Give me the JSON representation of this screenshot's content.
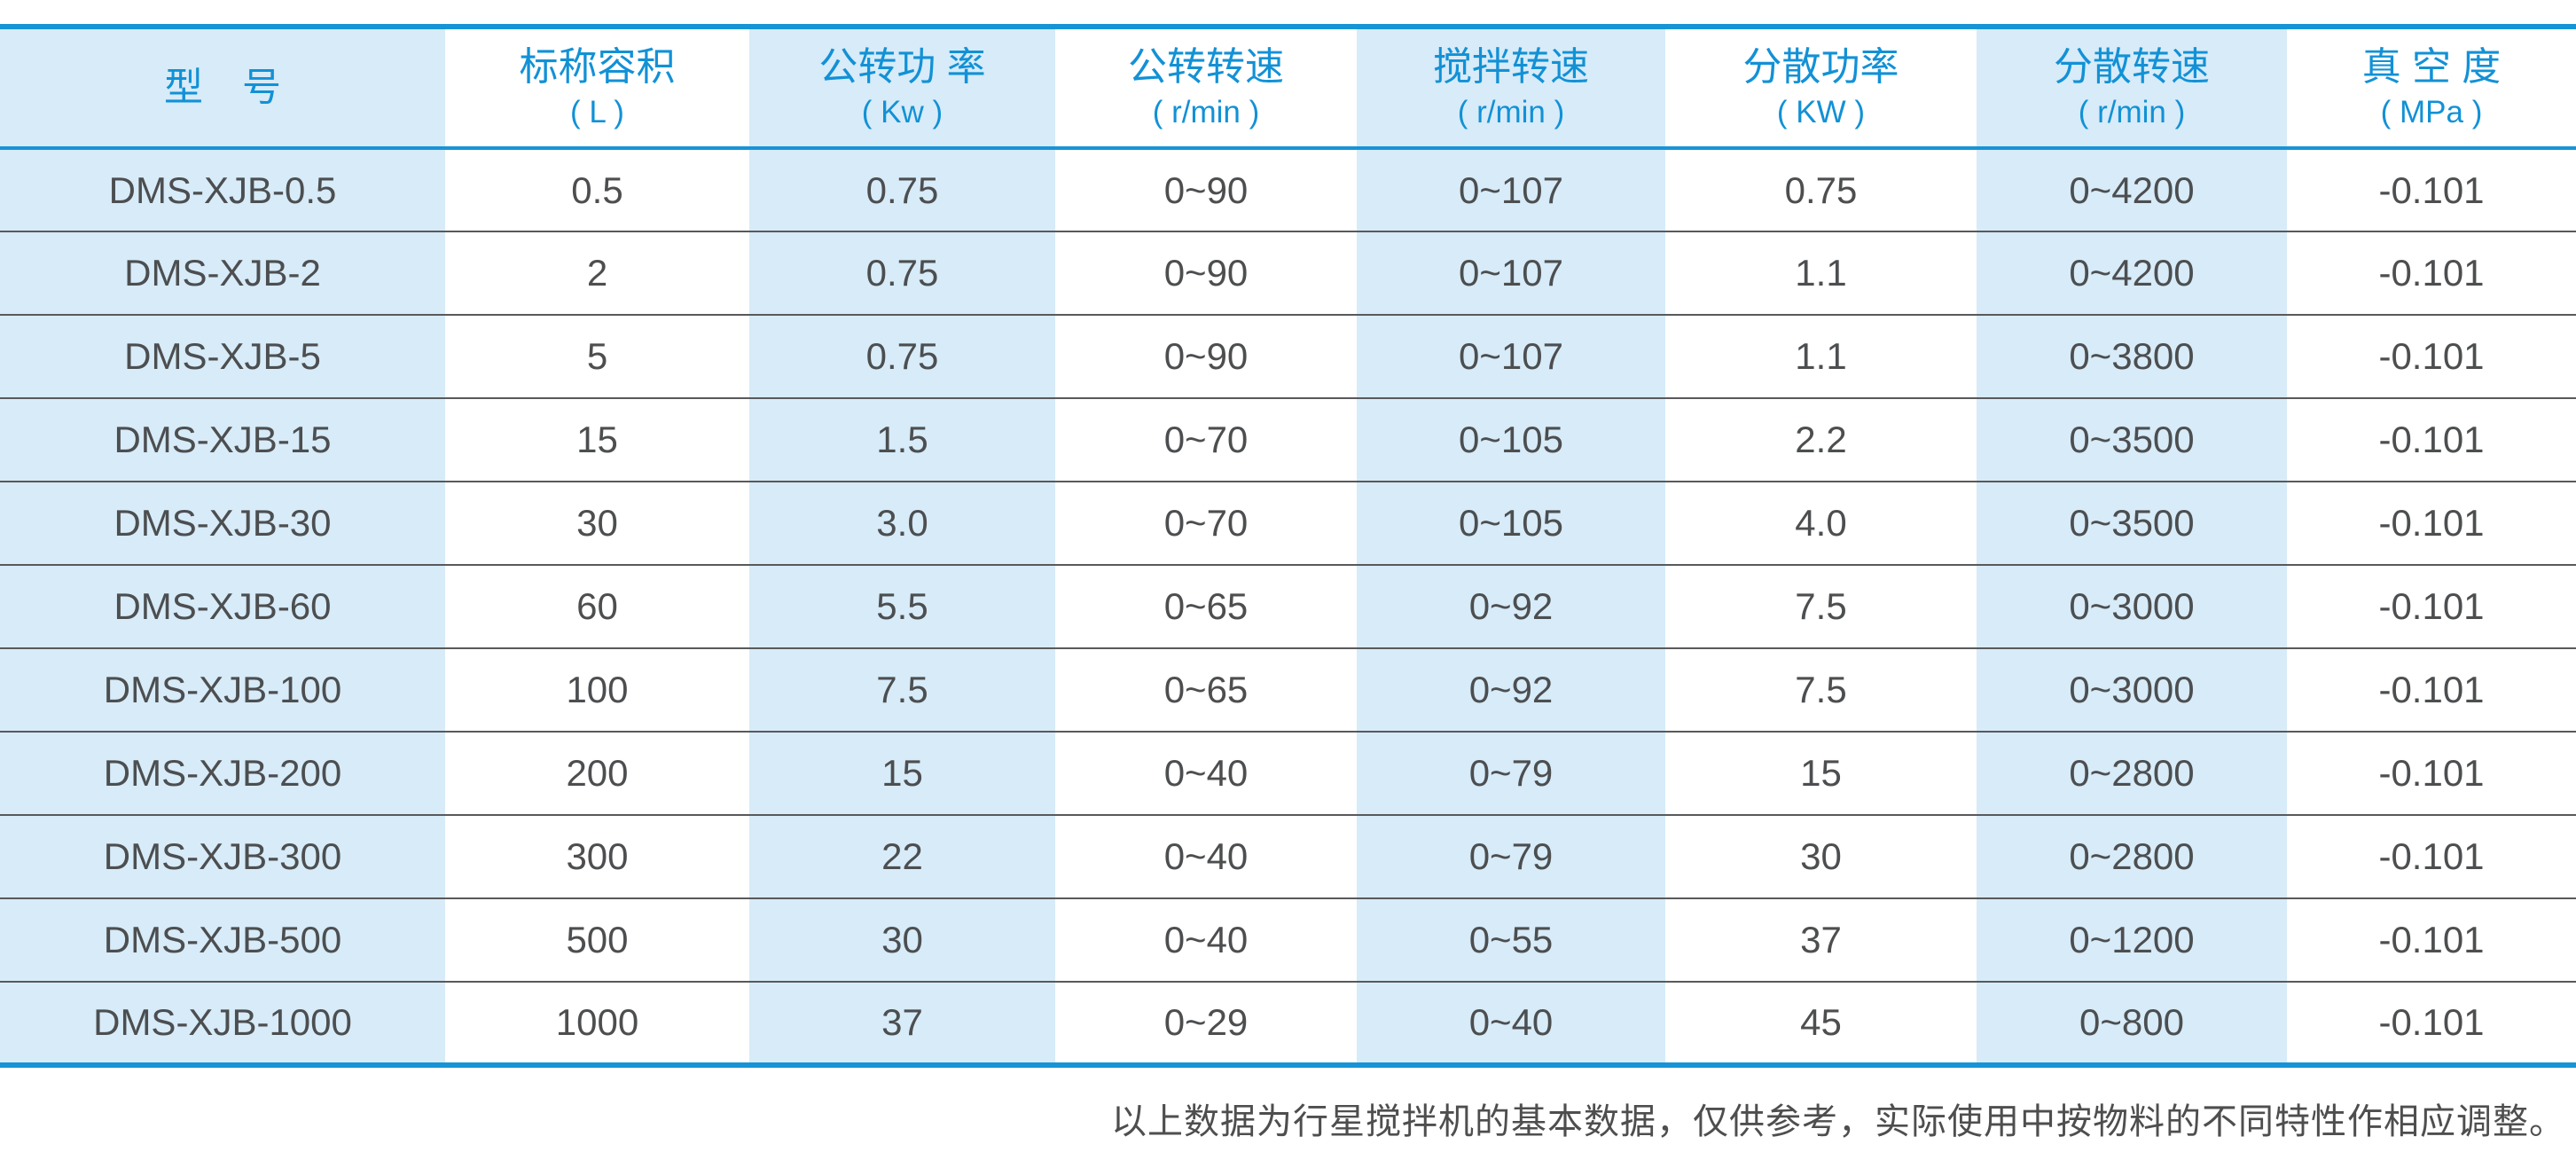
{
  "colors": {
    "accent-blue": "#1794d6",
    "header-text": "#1291d6",
    "stripe-bg": "#d7ebf8",
    "data-text": "#4c4e50",
    "separator": "#59595b",
    "footer-text": "#4e4e4e",
    "page-bg": "#ffffff"
  },
  "table": {
    "columns": [
      {
        "label": "型　号",
        "unit": ""
      },
      {
        "label": "标称容积",
        "unit": "( L )"
      },
      {
        "label": "公转功 率",
        "unit": "( Kw )"
      },
      {
        "label": "公转转速",
        "unit": "( r/min )"
      },
      {
        "label": "搅拌转速",
        "unit": "( r/min )"
      },
      {
        "label": "分散功率",
        "unit": "( KW )"
      },
      {
        "label": "分散转速",
        "unit": "( r/min )"
      },
      {
        "label": "真 空 度",
        "unit": "( MPa )"
      }
    ],
    "rows": [
      [
        "DMS-XJB-0.5",
        "0.5",
        "0.75",
        "0~90",
        "0~107",
        "0.75",
        "0~4200",
        "-0.101"
      ],
      [
        "DMS-XJB-2",
        "2",
        "0.75",
        "0~90",
        "0~107",
        "1.1",
        "0~4200",
        "-0.101"
      ],
      [
        "DMS-XJB-5",
        "5",
        "0.75",
        "0~90",
        "0~107",
        "1.1",
        "0~3800",
        "-0.101"
      ],
      [
        "DMS-XJB-15",
        "15",
        "1.5",
        "0~70",
        "0~105",
        "2.2",
        "0~3500",
        "-0.101"
      ],
      [
        "DMS-XJB-30",
        "30",
        "3.0",
        "0~70",
        "0~105",
        "4.0",
        "0~3500",
        "-0.101"
      ],
      [
        "DMS-XJB-60",
        "60",
        "5.5",
        "0~65",
        "0~92",
        "7.5",
        "0~3000",
        "-0.101"
      ],
      [
        "DMS-XJB-100",
        "100",
        "7.5",
        "0~65",
        "0~92",
        "7.5",
        "0~3000",
        "-0.101"
      ],
      [
        "DMS-XJB-200",
        "200",
        "15",
        "0~40",
        "0~79",
        "15",
        "0~2800",
        "-0.101"
      ],
      [
        "DMS-XJB-300",
        "300",
        "22",
        "0~40",
        "0~79",
        "30",
        "0~2800",
        "-0.101"
      ],
      [
        "DMS-XJB-500",
        "500",
        "30",
        "0~40",
        "0~55",
        "37",
        "0~1200",
        "-0.101"
      ],
      [
        "DMS-XJB-1000",
        "1000",
        "37",
        "0~29",
        "0~40",
        "45",
        "0~800",
        "-0.101"
      ]
    ]
  },
  "footer": {
    "note": "以上数据为行星搅拌机的基本数据，仅供参考，实际使用中按物料的不同特性作相应调整。"
  }
}
